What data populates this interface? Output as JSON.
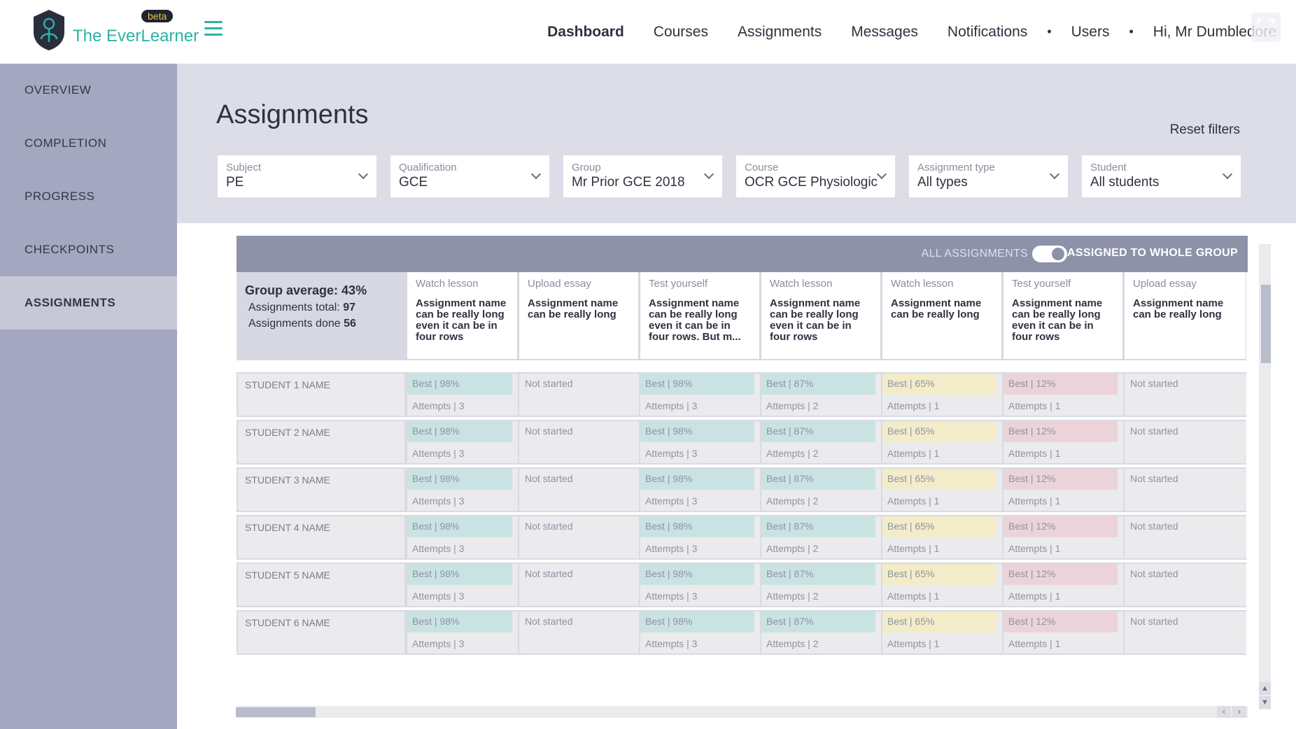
{
  "brand": {
    "name": "The EverLearner",
    "badge": "beta"
  },
  "topnav": {
    "dashboard": "Dashboard",
    "courses": "Courses",
    "assignments": "Assignments",
    "messages": "Messages",
    "notifications": "Notifications",
    "users": "Users",
    "greeting": "Hi, Mr Dumbledore"
  },
  "sidebar": {
    "items": [
      {
        "label": "OVERVIEW"
      },
      {
        "label": "COMPLETION"
      },
      {
        "label": "PROGRESS"
      },
      {
        "label": "CHECKPOINTS"
      },
      {
        "label": "ASSIGNMENTS"
      }
    ]
  },
  "page": {
    "title": "Assignments",
    "reset": "Reset filters"
  },
  "filters": [
    {
      "label": "Subject",
      "value": "PE"
    },
    {
      "label": "Qualification",
      "value": "GCE"
    },
    {
      "label": "Group",
      "value": "Mr Prior GCE 2018"
    },
    {
      "label": "Course",
      "value": "OCR GCE Physiologic"
    },
    {
      "label": "Assignment type",
      "value": "All types"
    },
    {
      "label": "Student",
      "value": "All students"
    }
  ],
  "table": {
    "toggle_left": "ALL ASSIGNMENTS",
    "toggle_right": "ASSIGNED TO WHOLE GROUP",
    "summary": {
      "average": "Group average: 43%",
      "total_label": "Assignments total:",
      "total": "97",
      "done_label": "Assignments done",
      "done": "56"
    },
    "columns": [
      {
        "type": "Watch lesson",
        "name": "Assignment name can be really long even it can be in four rows"
      },
      {
        "type": "Upload essay",
        "name": "Assignment name can be really long"
      },
      {
        "type": "Test yourself",
        "name": "Assignment name can be really long even it can be in four rows. But m..."
      },
      {
        "type": "Watch lesson",
        "name": "Assignment name can be really long even it can be in four rows"
      },
      {
        "type": "Watch lesson",
        "name": "Assignment name can be really long"
      },
      {
        "type": "Test yourself",
        "name": "Assignment name can be really long even it can be in four rows"
      },
      {
        "type": "Upload essay",
        "name": "Assignment name can be really long"
      }
    ],
    "row_cells": [
      {
        "best": "Best | 98%",
        "attempts": "Attempts | 3",
        "status": "green"
      },
      {
        "not_started": "Not started"
      },
      {
        "best": "Best | 98%",
        "attempts": "Attempts | 3",
        "status": "green"
      },
      {
        "best": "Best | 87%",
        "attempts": "Attempts | 2",
        "status": "green"
      },
      {
        "best": "Best | 65%",
        "attempts": "Attempts | 1",
        "status": "yellow"
      },
      {
        "best": "Best | 12%",
        "attempts": "Attempts | 1",
        "status": "red"
      },
      {
        "not_started": "Not started"
      }
    ],
    "students": [
      "STUDENT 1 NAME",
      "STUDENT 2 NAME",
      "STUDENT 3 NAME",
      "STUDENT 4 NAME",
      "STUDENT 5 NAME",
      "STUDENT 6 NAME"
    ]
  },
  "colors": {
    "accent": "#2bb3a5",
    "sidebar": "#a3a7c0",
    "header": "#dcdde7"
  }
}
